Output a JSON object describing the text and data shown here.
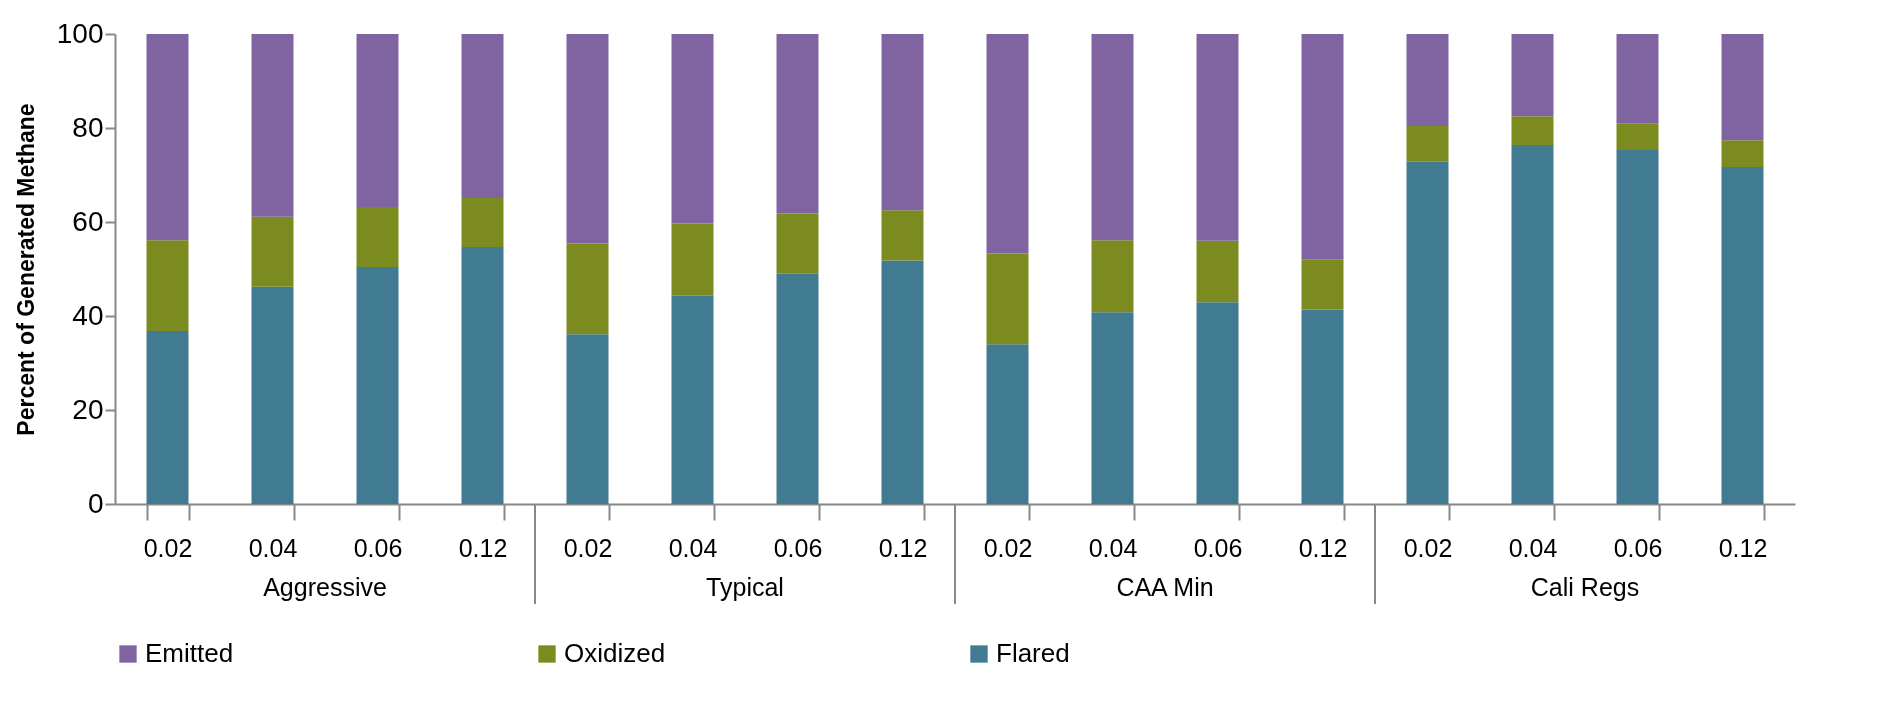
{
  "chart_data": {
    "type": "bar",
    "stacked": true,
    "ylabel": "Percent of Generated Methane",
    "categories": [
      "0.02",
      "0.04",
      "0.06",
      "0.12",
      "0.02",
      "0.04",
      "0.06",
      "0.12",
      "0.02",
      "0.04",
      "0.06",
      "0.12",
      "0.02",
      "0.04",
      "0.06",
      "0.12"
    ],
    "annotations": [
      "Aggressive",
      "Typical",
      "CAA Min",
      "Cali Regs"
    ],
    "series": [
      {
        "name": "Flared",
        "color": "#417b92",
        "values": [
          36.8,
          46.2,
          50.4,
          54.7,
          36.1,
          44.3,
          49.0,
          51.8,
          34.0,
          40.8,
          42.9,
          41.4,
          72.8,
          76.4,
          75.3,
          71.7
        ]
      },
      {
        "name": "Oxidized",
        "color": "#7b8b1f",
        "values": [
          19.3,
          14.9,
          12.8,
          10.4,
          19.3,
          15.4,
          12.8,
          10.7,
          19.3,
          15.3,
          13.1,
          10.7,
          7.6,
          6.1,
          5.7,
          5.7
        ]
      },
      {
        "name": "Emitted",
        "color": "#8064a2",
        "values": [
          43.9,
          38.9,
          36.8,
          34.9,
          44.6,
          40.3,
          38.2,
          37.5,
          46.7,
          43.9,
          44.0,
          47.9,
          19.6,
          17.5,
          19.0,
          22.6
        ]
      }
    ],
    "ylim": [
      0,
      100
    ],
    "yticks": [
      0,
      20,
      40,
      60,
      80,
      100
    ],
    "legend": "bottom"
  }
}
